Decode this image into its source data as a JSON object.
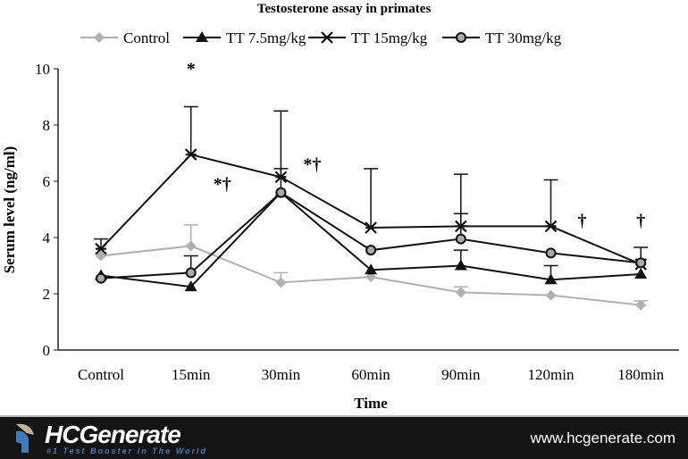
{
  "chart_data": {
    "type": "line",
    "title": "Testosterone assay in primates",
    "xlabel": "Time",
    "ylabel": "Serum level (ng/ml)",
    "ylim": [
      0,
      10
    ],
    "yticks": [
      0,
      2,
      4,
      6,
      8,
      10
    ],
    "categories": [
      "Control",
      "15min",
      "30min",
      "60min",
      "90min",
      "120min",
      "180min"
    ],
    "legend_position": "top",
    "series": [
      {
        "name": "Control",
        "marker": "diamond",
        "color": "#b0b0b0",
        "values": [
          3.35,
          3.7,
          2.4,
          2.6,
          2.05,
          1.95,
          1.6
        ],
        "error_upper": [
          null,
          4.45,
          2.75,
          null,
          2.25,
          null,
          1.75
        ]
      },
      {
        "name": "TT 7.5mg/kg",
        "marker": "triangle",
        "color": "#111111",
        "values": [
          2.65,
          2.25,
          5.6,
          2.85,
          3.0,
          2.5,
          2.7
        ],
        "error_upper": [
          null,
          null,
          null,
          null,
          3.55,
          3.0,
          null
        ]
      },
      {
        "name": "TT 15mg/kg",
        "marker": "x",
        "color": "#111111",
        "values": [
          3.6,
          6.95,
          6.15,
          4.35,
          4.4,
          4.4,
          3.05
        ],
        "error_upper": [
          3.95,
          8.65,
          8.5,
          6.45,
          6.25,
          6.05,
          null
        ]
      },
      {
        "name": "TT 30mg/kg",
        "marker": "circle",
        "color": "#111111",
        "values": [
          2.55,
          2.75,
          5.6,
          3.55,
          3.95,
          3.45,
          3.1
        ],
        "error_upper": [
          null,
          3.35,
          6.45,
          null,
          4.85,
          null,
          3.65
        ]
      }
    ],
    "annotations": [
      {
        "text": "*",
        "category": "15min",
        "y": 9.8
      },
      {
        "text": "*†",
        "category": "15min",
        "y": 5.7,
        "offset": "right"
      },
      {
        "text": "*†",
        "category": "30min",
        "y": 6.4,
        "offset": "right"
      },
      {
        "text": "†",
        "category": "120min",
        "y": 4.4,
        "offset": "right"
      },
      {
        "text": "†",
        "category": "180min",
        "y": 4.4
      }
    ]
  },
  "footer": {
    "brand": "HCGenerate",
    "tagline": "#1 Test Booster In The World",
    "url": "www.hcgenerate.com"
  }
}
